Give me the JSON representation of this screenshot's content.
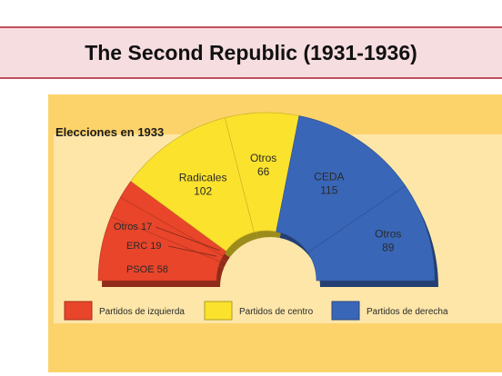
{
  "slide_title": "The Second Republic (1931-1936)",
  "colors": {
    "left": "#e8452a",
    "center": "#fbe22c",
    "right": "#3a66b8",
    "background": "#fcd36b",
    "inner_panel": "#fde6a8"
  },
  "chart_data": {
    "type": "pie",
    "subtype": "parliament-hemicycle",
    "title": "Elecciones en 1933",
    "slices": [
      {
        "label": "PSOE",
        "value": 58,
        "group": "left"
      },
      {
        "label": "ERC",
        "value": 19,
        "group": "left"
      },
      {
        "label": "Otros",
        "value": 17,
        "group": "left"
      },
      {
        "label": "Radicales",
        "value": 102,
        "group": "center"
      },
      {
        "label": "Otros",
        "value": 66,
        "group": "center"
      },
      {
        "label": "CEDA",
        "value": 115,
        "group": "right"
      },
      {
        "label": "Otros",
        "value": 89,
        "group": "right"
      }
    ],
    "slice_labels": [
      "PSOE 58",
      "ERC 19",
      "Otros 17"
    ],
    "legend": [
      {
        "label": "Partidos de izquierda",
        "group": "left"
      },
      {
        "label": "Partidos de centro",
        "group": "center"
      },
      {
        "label": "Partidos de derecha",
        "group": "right"
      }
    ],
    "legend_position": "bottom"
  }
}
